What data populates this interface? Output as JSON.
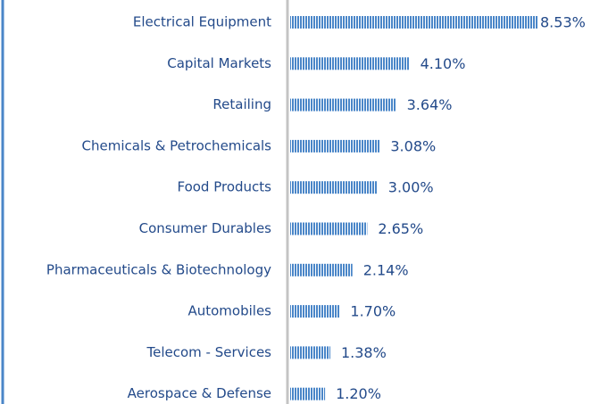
{
  "chart_data": {
    "type": "bar",
    "orientation": "horizontal",
    "categories": [
      "Electrical Equipment",
      "Capital Markets",
      "Retailing",
      "Chemicals & Petrochemicals",
      "Food Products",
      "Consumer Durables",
      "Pharmaceuticals & Biotechnology",
      "Automobiles",
      "Telecom - Services",
      "Aerospace & Defense"
    ],
    "values": [
      8.53,
      4.1,
      3.64,
      3.08,
      3.0,
      2.65,
      2.14,
      1.7,
      1.38,
      1.2
    ],
    "value_labels": [
      "8.53%",
      "4.10%",
      "3.64%",
      "3.08%",
      "3.00%",
      "2.65%",
      "2.14%",
      "1.70%",
      "1.38%",
      "1.20%"
    ],
    "color": "#4a86c8"
  }
}
